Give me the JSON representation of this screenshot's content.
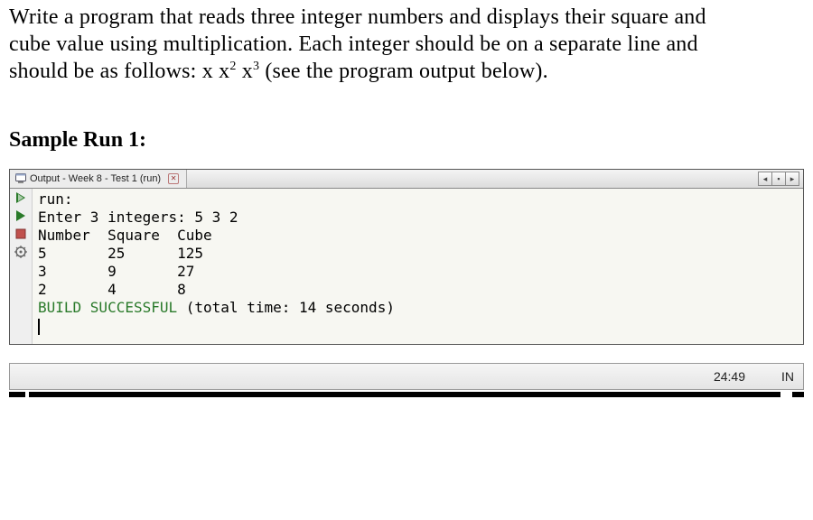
{
  "problem": {
    "line1": "Write a program that reads three integer numbers and displays their square and",
    "line2": "cube value using multiplication. Each integer should be on a separate line and",
    "line3_prefix": "should be as follows: x x",
    "sup2": "2",
    "mid": " x",
    "sup3": "3",
    "line3_suffix": " (see the program output below)."
  },
  "sample_heading": "Sample Run 1:",
  "ide": {
    "tab_title": "Output - Week 8 - Test 1 (run)",
    "controls": {
      "left": "◂",
      "mid": "▪",
      "right": "▸"
    }
  },
  "console": {
    "run_label": "run:",
    "prompt_label": "Enter 3 integers: ",
    "input_values": "5 3 2",
    "table": {
      "columns": [
        "Number",
        "Square",
        "Cube"
      ],
      "rows": [
        [
          "5",
          "25",
          "125"
        ],
        [
          "3",
          "9",
          "27"
        ],
        [
          "2",
          "4",
          "8"
        ]
      ],
      "col_widths_ch": [
        8,
        8,
        4
      ]
    },
    "build_prefix": "BUILD SUCCESSFUL ",
    "build_suffix": "(total time: 14 seconds)",
    "colors": {
      "success": "#2a7a2a",
      "text": "#000000"
    }
  },
  "status": {
    "time": "24:49",
    "mode": "IN"
  },
  "scrub": {
    "gaps": [
      {
        "left_pct": 2,
        "width_pct": 0.5
      },
      {
        "left_pct": 97,
        "width_pct": 1.5
      }
    ]
  }
}
